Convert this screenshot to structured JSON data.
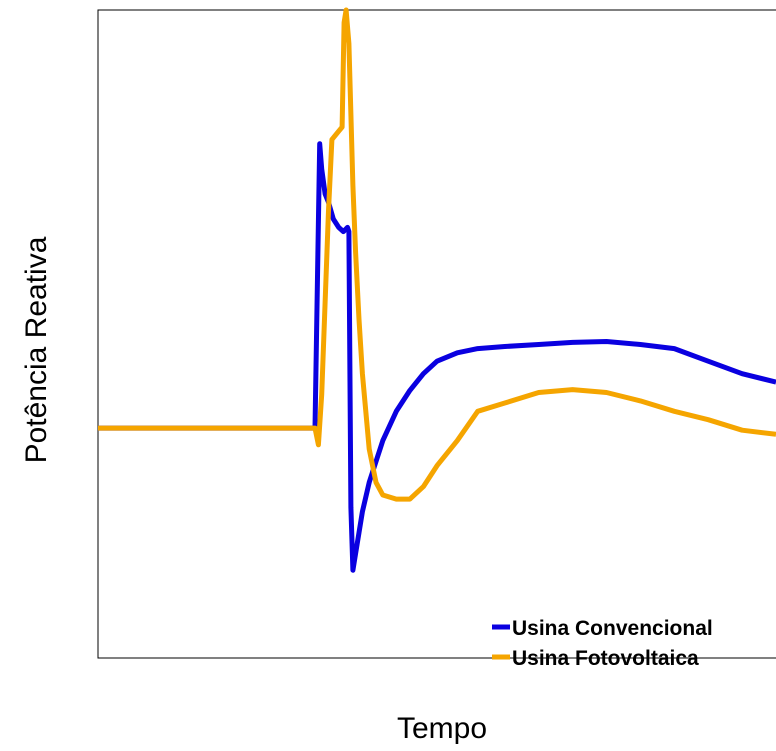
{
  "chart_data": {
    "type": "line",
    "title": "",
    "xlabel": "Tempo",
    "ylabel": "Potência Reativa",
    "xlim": [
      0,
      1
    ],
    "ylim": [
      -0.55,
      1.0
    ],
    "grid": false,
    "legend_position": "bottom-right",
    "series": [
      {
        "name": "Usina Convencional",
        "color": "#0a00e0",
        "x": [
          0,
          0.32,
          0.327,
          0.33,
          0.335,
          0.34,
          0.347,
          0.355,
          0.362,
          0.368,
          0.37,
          0.373,
          0.376,
          0.38,
          0.385,
          0.39,
          0.4,
          0.41,
          0.42,
          0.44,
          0.46,
          0.48,
          0.5,
          0.53,
          0.56,
          0.6,
          0.65,
          0.7,
          0.75,
          0.8,
          0.85,
          0.9,
          0.95,
          1.0
        ],
        "values": [
          0,
          0,
          0.68,
          0.62,
          0.56,
          0.54,
          0.5,
          0.48,
          0.47,
          0.48,
          0.47,
          -0.19,
          -0.34,
          -0.3,
          -0.25,
          -0.2,
          -0.13,
          -0.08,
          -0.03,
          0.04,
          0.09,
          0.13,
          0.16,
          0.18,
          0.19,
          0.195,
          0.2,
          0.205,
          0.207,
          0.2,
          0.19,
          0.16,
          0.13,
          0.11
        ]
      },
      {
        "name": "Usina Fotovoltaica",
        "color": "#f5a500",
        "x": [
          0,
          0.32,
          0.325,
          0.33,
          0.335,
          0.34,
          0.345,
          0.355,
          0.36,
          0.363,
          0.366,
          0.37,
          0.373,
          0.376,
          0.38,
          0.385,
          0.39,
          0.4,
          0.41,
          0.42,
          0.44,
          0.46,
          0.48,
          0.5,
          0.53,
          0.56,
          0.6,
          0.65,
          0.7,
          0.75,
          0.8,
          0.85,
          0.9,
          0.95,
          1.0
        ],
        "values": [
          0,
          0,
          -0.04,
          0.08,
          0.3,
          0.52,
          0.69,
          0.71,
          0.72,
          0.97,
          1.0,
          0.92,
          0.75,
          0.58,
          0.42,
          0.26,
          0.13,
          -0.05,
          -0.13,
          -0.16,
          -0.17,
          -0.17,
          -0.14,
          -0.09,
          -0.03,
          0.04,
          0.06,
          0.085,
          0.092,
          0.085,
          0.065,
          0.04,
          0.02,
          -0.005,
          -0.015
        ]
      }
    ]
  }
}
